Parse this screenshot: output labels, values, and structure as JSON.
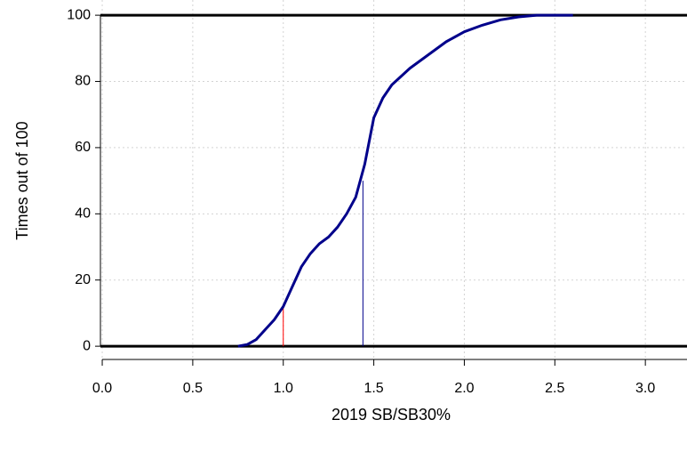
{
  "chart_data": {
    "type": "line",
    "x_label": "2019 SB/SB30%",
    "y_label": "Times out of 100",
    "x": [
      0.75,
      0.8,
      0.85,
      0.9,
      0.95,
      1.0,
      1.05,
      1.1,
      1.15,
      1.2,
      1.25,
      1.3,
      1.35,
      1.4,
      1.45,
      1.5,
      1.55,
      1.6,
      1.7,
      1.8,
      1.9,
      2.0,
      2.1,
      2.2,
      2.3,
      2.4,
      2.6
    ],
    "series": [
      {
        "color": "#00008b",
        "values": [
          0,
          0.5,
          2,
          5,
          8,
          12,
          18,
          24,
          28,
          31,
          33,
          36,
          40,
          45,
          55,
          69,
          75,
          79,
          84,
          88,
          92,
          95,
          97,
          98.6,
          99.5,
          100,
          100
        ]
      }
    ],
    "hlines": [
      0,
      100
    ],
    "markers": [
      {
        "x": 1.0,
        "y": 12,
        "color": "#ff0000"
      },
      {
        "x": 1.44,
        "y": 50,
        "color": "#00008b"
      }
    ],
    "xlim": [
      -0.01,
      3.23
    ],
    "ylim": [
      -4,
      104.6
    ],
    "xticks": [
      {
        "value": 0,
        "label": "0.0"
      },
      0.5,
      {
        "value": 1,
        "label": "1.0"
      },
      1.5,
      {
        "value": 2,
        "label": "2.0"
      },
      2.5,
      {
        "value": 3,
        "label": "3.0"
      }
    ],
    "yticks": [
      0,
      20,
      40,
      60,
      80,
      100
    ],
    "grid": true
  }
}
